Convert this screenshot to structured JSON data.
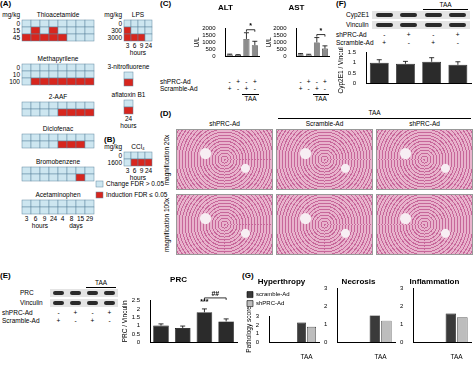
{
  "panel_labels": [
    "(A)",
    "(B)",
    "(C)",
    "(D)",
    "(E)",
    "(F)",
    "(G)"
  ],
  "heatmaps": {
    "legend": [
      {
        "text": "Change FDR > 0.05",
        "color": "#cde6f0"
      },
      {
        "text": "Induction FDR ≤ 0.05",
        "color": "#d7261e"
      }
    ],
    "grids": [
      {
        "compound": "Thioacetamide",
        "unit": "mg/kg",
        "doses": [
          "0",
          "15",
          "45"
        ],
        "cells": [
          [
            0,
            0,
            0,
            0,
            0,
            0,
            0,
            0
          ],
          [
            0,
            1,
            0,
            1,
            0,
            0,
            0,
            0
          ],
          [
            1,
            1,
            1,
            1,
            1,
            0,
            0,
            0
          ]
        ]
      },
      {
        "compound": "LPS",
        "unit": "mg/kg",
        "doses": [
          "0",
          "300",
          "3000"
        ],
        "cells": [
          [
            0,
            0,
            0,
            0
          ],
          [
            1,
            0,
            0,
            0
          ],
          [
            1,
            1,
            1,
            0
          ]
        ],
        "time_groups": [
          {
            "times": [
              "3",
              "6",
              "9",
              "24"
            ],
            "unit": "hours"
          }
        ]
      },
      {
        "compound": "Methapyrilene",
        "doses": [
          "0",
          "10",
          "100"
        ],
        "cells": [
          [
            0,
            0,
            0,
            0,
            0,
            0,
            0,
            0
          ],
          [
            0,
            0,
            0,
            0,
            0,
            0,
            0,
            0
          ],
          [
            0,
            1,
            1,
            1,
            1,
            1,
            1,
            1
          ]
        ]
      },
      {
        "compound": "3-nitrofluorene",
        "cells": [
          [
            0
          ],
          [
            1
          ]
        ]
      },
      {
        "compound": "aflatoxin B1",
        "cells": [
          [
            0
          ],
          [
            1
          ]
        ],
        "time_groups": [
          {
            "times": [
              "24"
            ],
            "unit": "hours"
          }
        ]
      },
      {
        "compound": "2-AAF",
        "cells": [
          [
            0,
            0,
            0,
            0,
            0,
            0,
            0,
            0
          ],
          [
            0,
            0,
            0,
            0,
            1,
            1,
            1,
            1
          ]
        ]
      },
      {
        "compound": "Diclofenac",
        "cells": [
          [
            0,
            0,
            0,
            0,
            0,
            0,
            0,
            0
          ],
          [
            0,
            0,
            0,
            0,
            1,
            1,
            1,
            0
          ]
        ]
      },
      {
        "compound": "CCl₄",
        "unit": "mg/kg",
        "doses": [
          "0",
          "1600"
        ],
        "cells": [
          [
            0,
            0,
            0,
            0
          ],
          [
            0,
            1,
            1,
            1
          ]
        ],
        "time_groups": [
          {
            "times": [
              "3",
              "6",
              "9",
              "24"
            ],
            "unit": "hours"
          }
        ]
      },
      {
        "compound": "Bromobenzene",
        "cells": [
          [
            0,
            0,
            0,
            0,
            0,
            0,
            0,
            0
          ],
          [
            0,
            0,
            0,
            0,
            0,
            0,
            1,
            0
          ]
        ]
      },
      {
        "compound": "Acetaminophen",
        "cells": [
          [
            0,
            0,
            0,
            0,
            0,
            0,
            0,
            0
          ],
          [
            0,
            0,
            0,
            0,
            0,
            0,
            0,
            0
          ]
        ],
        "time_groups": [
          {
            "times": [
              "3",
              "6",
              "9",
              "24"
            ],
            "unit": "hours"
          },
          {
            "times": [
              "4",
              "8",
              "15",
              "29"
            ],
            "unit": "days"
          }
        ]
      }
    ]
  },
  "histology": {
    "treatment": "TAA",
    "columns": [
      "shPRC-Ad",
      "Scramble-Ad",
      "shPRC-Ad"
    ],
    "rows": [
      "magnification 20x",
      "magnification 100x"
    ]
  },
  "blots": [
    {
      "bands": [
        "PRC",
        "Vinculin"
      ],
      "treatment": "TAA"
    },
    {
      "bands": [
        "Cyp2E1",
        "Vinculin"
      ],
      "treatment": "TAA"
    }
  ],
  "conditions": {
    "rows": [
      {
        "name": "shPRC-Ad",
        "signs": [
          "-",
          "+",
          "-",
          "+"
        ]
      },
      {
        "name": "Scramble-Ad",
        "signs": [
          "+",
          "-",
          "+",
          "-"
        ]
      }
    ],
    "treatment": "TAA"
  },
  "chart_data": [
    {
      "type": "bar",
      "title": "ALT",
      "ylabel": "U/L",
      "categories": [
        null,
        null,
        null,
        null
      ],
      "values": [
        120,
        90,
        1250,
        800
      ],
      "errors": [
        30,
        25,
        450,
        280
      ],
      "color": "#8c8c8c",
      "ylim": [
        0,
        2000
      ],
      "yticks": [
        0,
        500,
        1000,
        1500,
        2000
      ],
      "grid": false,
      "annotations": [
        {
          "text": "*",
          "bars": [
            2,
            3
          ]
        }
      ]
    },
    {
      "type": "bar",
      "title": "AST",
      "ylabel": "U/L",
      "categories": [
        null,
        null,
        null,
        null
      ],
      "values": [
        150,
        110,
        1000,
        550
      ],
      "errors": [
        40,
        30,
        350,
        200
      ],
      "color": "#8c8c8c",
      "ylim": [
        0,
        2000
      ],
      "yticks": [
        0,
        500,
        1000,
        1500,
        2000
      ],
      "grid": false,
      "annotations": [
        {
          "text": "*",
          "bars": [
            2,
            3
          ]
        }
      ]
    },
    {
      "type": "bar",
      "title": "PRC",
      "ylabel": "PRC / Vinculin",
      "categories": [
        null,
        null,
        null,
        null
      ],
      "values": [
        1.0,
        0.85,
        1.8,
        1.25
      ],
      "errors": [
        0.1,
        0.12,
        0.2,
        0.15
      ],
      "color": "#2b2b2b",
      "ylim": [
        0,
        2.5
      ],
      "yticks": [
        0,
        0.5,
        1,
        1.5,
        2,
        2.5
      ],
      "grid": false,
      "annotations": [
        {
          "text": "***",
          "bars": [
            2
          ]
        },
        {
          "text": "##",
          "bars": [
            2,
            3
          ]
        }
      ]
    },
    {
      "type": "bar",
      "ylabel": "Cyp2E1 / Vinculin",
      "categories": [
        null,
        null,
        null,
        null
      ],
      "values": [
        1.0,
        0.95,
        1.05,
        0.9
      ],
      "errors": [
        0.15,
        0.12,
        0.2,
        0.15
      ],
      "color": "#2b2b2b",
      "ylim": [
        0,
        1.5
      ],
      "yticks": [
        0,
        0.5,
        1,
        1.5
      ],
      "grid": false
    },
    {
      "type": "bar",
      "title": "Hyperthropy",
      "ylabel": "Pathology score",
      "categories": [
        null,
        "TAA"
      ],
      "series": [
        {
          "name": "scramble-Ad",
          "color": "#3a3a3a",
          "values": [
            0,
            2.3
          ]
        },
        {
          "name": "shPRC-Ad",
          "color": "#bdbdbd",
          "values": [
            0,
            1.8
          ]
        }
      ],
      "ylim": [
        0,
        3
      ],
      "yticks": [
        0,
        1,
        2,
        3
      ],
      "grid": false,
      "legend": "top-left"
    },
    {
      "type": "bar",
      "title": "Necrosis",
      "categories": [
        null,
        "TAA"
      ],
      "series": [
        {
          "name": "scramble-Ad",
          "color": "#3a3a3a",
          "values": [
            0,
            1.5
          ]
        },
        {
          "name": "shPRC-Ad",
          "color": "#bdbdbd",
          "values": [
            0,
            1.2
          ]
        }
      ],
      "ylim": [
        0,
        3
      ],
      "yticks": [
        0,
        1,
        2,
        3
      ],
      "grid": false
    },
    {
      "type": "bar",
      "title": "Inflammation",
      "categories": [
        null,
        "TAA"
      ],
      "series": [
        {
          "name": "scramble-Ad",
          "color": "#3a3a3a",
          "values": [
            0,
            1.6
          ]
        },
        {
          "name": "shPRC-Ad",
          "color": "#bdbdbd",
          "values": [
            0,
            1.4
          ]
        }
      ],
      "ylim": [
        0,
        3
      ],
      "yticks": [
        0,
        1,
        2,
        3
      ],
      "grid": false
    }
  ]
}
